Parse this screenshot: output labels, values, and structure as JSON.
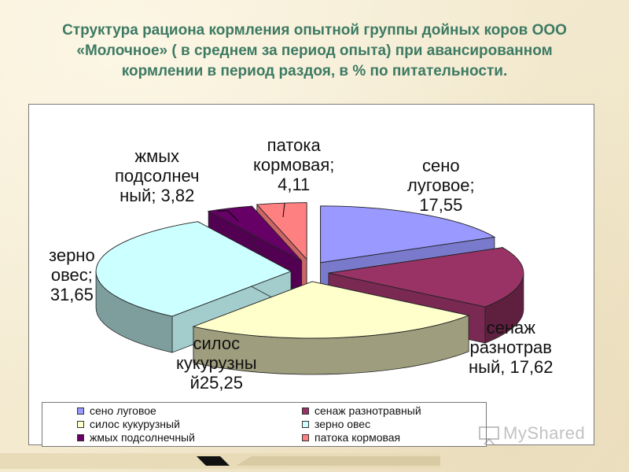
{
  "title": {
    "line1": "Структура рациона кормления опытной группы дойных коров ООО",
    "line2": "«Молочное» ( в среднем за период опыта) при авансированном",
    "line3": "кормлении в период раздоя, в % по питательности."
  },
  "chart_data": {
    "type": "pie",
    "style": "3d-exploded",
    "slices": [
      {
        "name": "сено луговое",
        "value": 17.55,
        "color": "#9999ff"
      },
      {
        "name": "сенаж разнотравный",
        "value": 17.62,
        "color": "#993366"
      },
      {
        "name": "силос кукурузный",
        "value": 25.25,
        "color": "#ffffcc"
      },
      {
        "name": "зерно овес",
        "value": 31.65,
        "color": "#ccffff"
      },
      {
        "name": "жмых подсолнечный",
        "value": 3.82,
        "color": "#660066"
      },
      {
        "name": "патока кормовая",
        "value": 4.11,
        "color": "#ff8080"
      }
    ],
    "data_labels": [
      {
        "lines": [
          "сено",
          "луговое;",
          "17,55"
        ]
      },
      {
        "lines": [
          "сенаж",
          "разнотрав",
          "ный, 17,62"
        ]
      },
      {
        "lines": [
          "силос",
          "кукурузны",
          "й25,25"
        ]
      },
      {
        "lines": [
          "зерно",
          "овес;",
          "31,65"
        ]
      },
      {
        "lines": [
          "жмых",
          "подсолнеч",
          "ный; 3,82"
        ]
      },
      {
        "lines": [
          "патока",
          "кормовая;",
          "4,11"
        ]
      }
    ],
    "legend": {
      "placement": "bottom",
      "items": [
        "сено луговое",
        "сенаж разнотравный",
        "силос кукурузный",
        "зерно овес",
        "жмых подсолнечный",
        "патока кормовая"
      ]
    }
  },
  "watermark": "MyShared"
}
